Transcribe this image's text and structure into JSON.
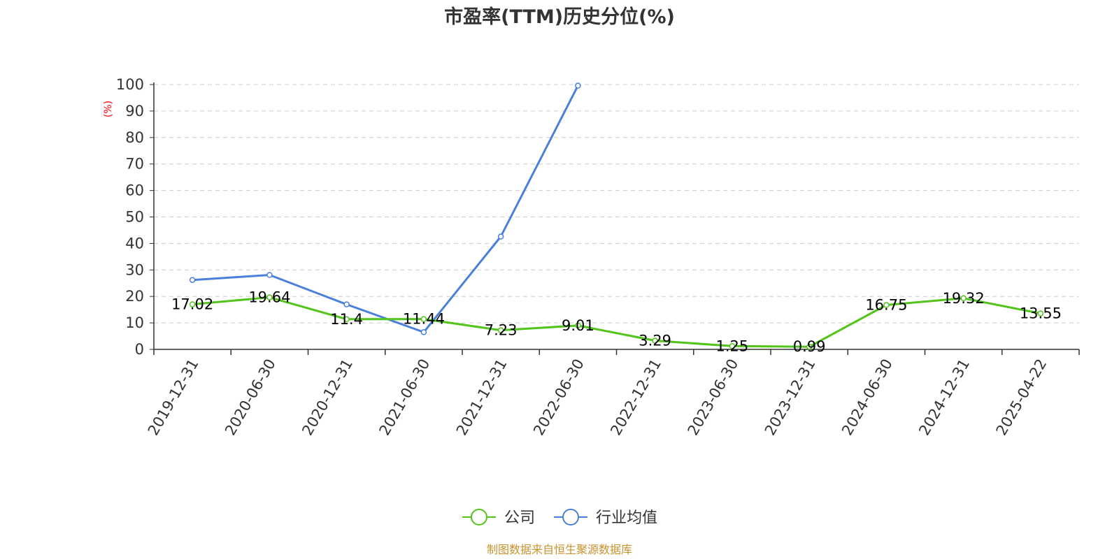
{
  "chart_data": {
    "type": "line",
    "title": "市盈率(TTM)历史分位(%)",
    "ylabel": "(%)",
    "ylim": [
      0,
      100
    ],
    "yticks": [
      0,
      10,
      20,
      30,
      40,
      50,
      60,
      70,
      80,
      90,
      100
    ],
    "grid": true,
    "legend_position": "bottom",
    "categories": [
      "2019-12-31",
      "2020-06-30",
      "2020-12-31",
      "2021-06-30",
      "2021-12-31",
      "2022-06-30",
      "2022-12-31",
      "2023-06-30",
      "2023-12-31",
      "2024-06-30",
      "2024-12-31",
      "2025-04-22"
    ],
    "series": [
      {
        "name": "公司",
        "color": "#52c41a",
        "values": [
          17.02,
          19.64,
          11.4,
          11.44,
          7.23,
          9.01,
          3.29,
          1.25,
          0.99,
          16.75,
          19.32,
          13.55
        ],
        "labels": [
          "17.02",
          "19.64",
          "11.4",
          "11.44",
          "7.23",
          "9.01",
          "3.29",
          "1.25",
          "0.99",
          "16.75",
          "19.32",
          "13.55"
        ]
      },
      {
        "name": "行业均值",
        "color": "#4a7fdb",
        "values": [
          26.2,
          28.1,
          17.0,
          6.5,
          42.6,
          99.6,
          null,
          null,
          null,
          null,
          null,
          null
        ]
      }
    ]
  },
  "source_text": "制图数据来自恒生聚源数据库"
}
